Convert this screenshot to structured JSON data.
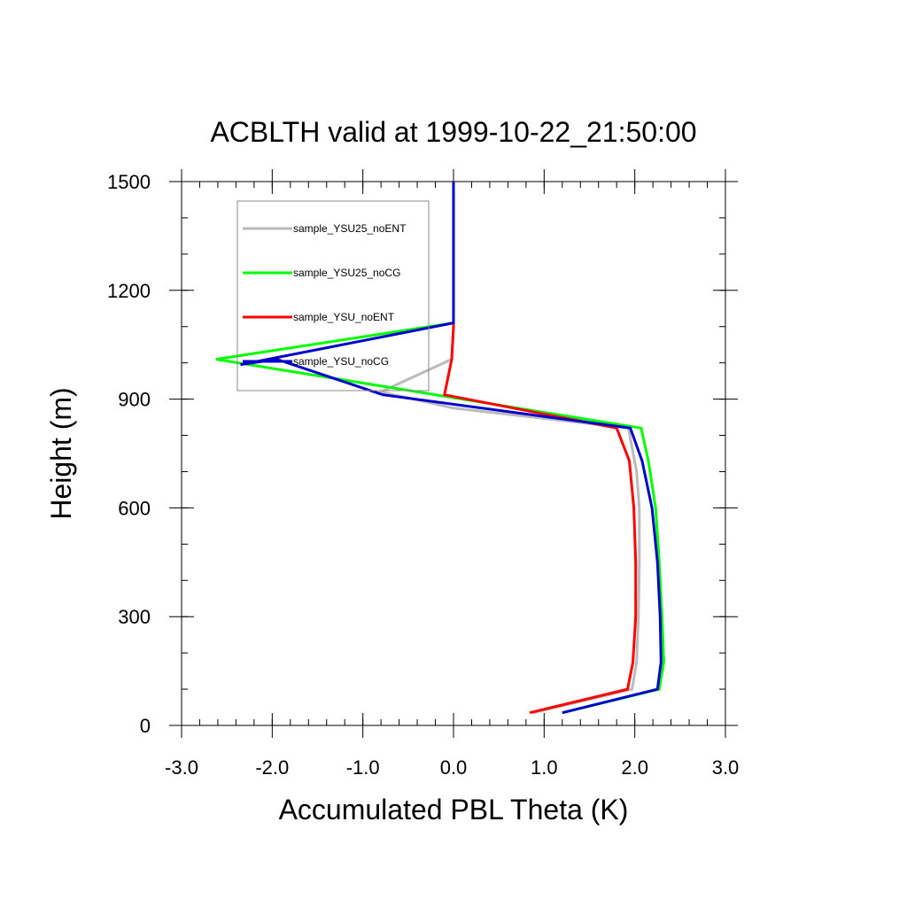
{
  "chart_data": {
    "type": "line",
    "title": "ACBLTH valid at 1999-10-22_21:50:00",
    "xlabel": "Accumulated PBL Theta (K)",
    "ylabel": "Height (m)",
    "xlim": [
      -3.0,
      3.0
    ],
    "ylim": [
      0,
      1500
    ],
    "xticks": [
      -3.0,
      -2.0,
      -1.0,
      0.0,
      1.0,
      2.0,
      3.0
    ],
    "xtick_labels": [
      "-3.0",
      "-2.0",
      "-1.0",
      "0.0",
      "1.0",
      "2.0",
      "3.0"
    ],
    "yticks": [
      0,
      300,
      600,
      900,
      1200,
      1500
    ],
    "ytick_labels": [
      "0",
      "300",
      "600",
      "900",
      "1200",
      "1500"
    ],
    "grid": false,
    "legend_position": "top-left",
    "series": [
      {
        "name": "sample_YSU25_noENT",
        "color": "#bbbbbb",
        "points": [
          [
            0.88,
            35
          ],
          [
            1.97,
            100
          ],
          [
            2.02,
            175
          ],
          [
            2.04,
            300
          ],
          [
            2.05,
            450
          ],
          [
            2.05,
            600
          ],
          [
            2.02,
            700
          ],
          [
            1.93,
            820
          ],
          [
            0.0,
            875
          ],
          [
            -0.8,
            920
          ],
          [
            -0.02,
            1010
          ],
          [
            0.0,
            1100
          ],
          [
            0.0,
            1200
          ],
          [
            0.0,
            1300
          ],
          [
            0.0,
            1400
          ],
          [
            0.0,
            1500
          ]
        ]
      },
      {
        "name": "sample_YSU25_noCG",
        "color": "#00ff00",
        "points": [
          [
            1.2,
            35
          ],
          [
            2.27,
            100
          ],
          [
            2.32,
            175
          ],
          [
            2.3,
            300
          ],
          [
            2.27,
            450
          ],
          [
            2.23,
            600
          ],
          [
            2.15,
            730
          ],
          [
            2.07,
            820
          ],
          [
            -2.62,
            1010
          ],
          [
            0.0,
            1110
          ],
          [
            0.0,
            1200
          ],
          [
            0.0,
            1300
          ],
          [
            0.0,
            1400
          ],
          [
            0.0,
            1500
          ]
        ]
      },
      {
        "name": "sample_YSU_noENT",
        "color": "#ff0000",
        "points": [
          [
            0.84,
            35
          ],
          [
            1.92,
            100
          ],
          [
            1.98,
            175
          ],
          [
            2.01,
            300
          ],
          [
            2.01,
            450
          ],
          [
            1.99,
            600
          ],
          [
            1.94,
            730
          ],
          [
            1.8,
            820
          ],
          [
            -0.1,
            912
          ],
          [
            -0.02,
            1010
          ],
          [
            0.0,
            1100
          ],
          [
            0.0,
            1200
          ],
          [
            0.0,
            1300
          ],
          [
            0.0,
            1400
          ],
          [
            0.0,
            1500
          ]
        ]
      },
      {
        "name": "sample_YSU_noCG",
        "color": "#0000cc",
        "points": [
          [
            1.2,
            35
          ],
          [
            2.25,
            100
          ],
          [
            2.29,
            175
          ],
          [
            2.28,
            300
          ],
          [
            2.25,
            450
          ],
          [
            2.19,
            600
          ],
          [
            2.08,
            730
          ],
          [
            1.95,
            820
          ],
          [
            -0.78,
            912
          ],
          [
            -1.95,
            1010
          ],
          [
            -2.35,
            995
          ],
          [
            0.0,
            1110
          ],
          [
            0.0,
            1200
          ],
          [
            0.0,
            1300
          ],
          [
            0.0,
            1400
          ],
          [
            0.0,
            1500
          ]
        ]
      }
    ]
  }
}
